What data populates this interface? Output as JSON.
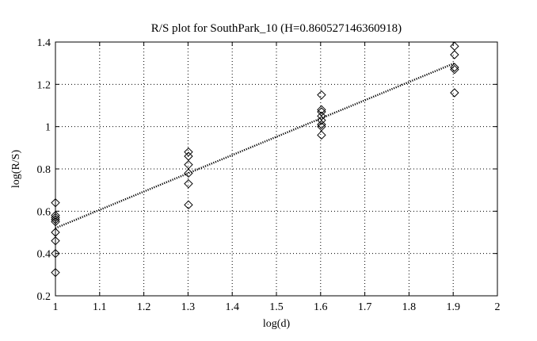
{
  "chart_data": {
    "type": "scatter",
    "title": "R/S plot for SouthPark_10 (H=0.860527146360918)",
    "xlabel": "log(d)",
    "ylabel": "log(R/S)",
    "xlim": [
      1,
      2
    ],
    "ylim": [
      0.2,
      1.4
    ],
    "xticks": [
      "1",
      "1.1",
      "1.2",
      "1.3",
      "1.4",
      "1.5",
      "1.6",
      "1.7",
      "1.8",
      "1.9",
      "2"
    ],
    "yticks": [
      "0.2",
      "0.4",
      "0.6",
      "0.8",
      "1",
      "1.2",
      "1.4"
    ],
    "grid": true,
    "marker": "diamond",
    "points": [
      {
        "x": 1.0,
        "y": 0.64
      },
      {
        "x": 1.0,
        "y": 0.58
      },
      {
        "x": 1.0,
        "y": 0.57
      },
      {
        "x": 1.0,
        "y": 0.56
      },
      {
        "x": 1.0,
        "y": 0.55
      },
      {
        "x": 1.0,
        "y": 0.5
      },
      {
        "x": 1.0,
        "y": 0.46
      },
      {
        "x": 1.0,
        "y": 0.4
      },
      {
        "x": 1.0,
        "y": 0.31
      },
      {
        "x": 1.301,
        "y": 0.88
      },
      {
        "x": 1.301,
        "y": 0.86
      },
      {
        "x": 1.301,
        "y": 0.82
      },
      {
        "x": 1.301,
        "y": 0.78
      },
      {
        "x": 1.301,
        "y": 0.73
      },
      {
        "x": 1.301,
        "y": 0.63
      },
      {
        "x": 1.602,
        "y": 1.15
      },
      {
        "x": 1.602,
        "y": 1.08
      },
      {
        "x": 1.602,
        "y": 1.07
      },
      {
        "x": 1.602,
        "y": 1.05
      },
      {
        "x": 1.602,
        "y": 1.03
      },
      {
        "x": 1.602,
        "y": 1.01
      },
      {
        "x": 1.602,
        "y": 1.0
      },
      {
        "x": 1.602,
        "y": 0.96
      },
      {
        "x": 1.903,
        "y": 1.38
      },
      {
        "x": 1.903,
        "y": 1.34
      },
      {
        "x": 1.903,
        "y": 1.28
      },
      {
        "x": 1.903,
        "y": 1.27
      },
      {
        "x": 1.903,
        "y": 1.16
      }
    ],
    "fit_line": {
      "x": [
        1.0,
        1.903
      ],
      "y": [
        0.52,
        1.3
      ],
      "style": "dotted"
    }
  }
}
